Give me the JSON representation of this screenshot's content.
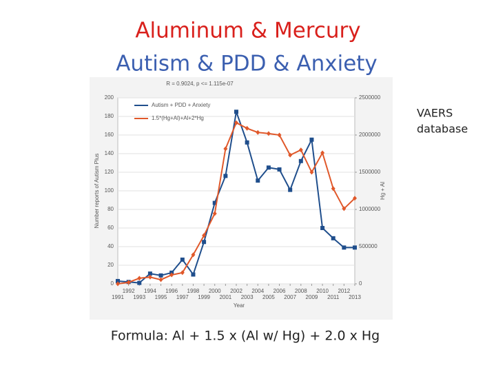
{
  "slide_title": [
    "Aluminum & Mercury",
    "Autism & PDD & Anxiety"
  ],
  "side_note": [
    "VAERS",
    "database"
  ],
  "formula": "Formula:  Al + 1.5 x (Al  w/ Hg) + 2.0 x Hg",
  "chart_data": {
    "type": "line",
    "title": "R = 0.9024, p <= 1.115e-07",
    "x_label": "Year",
    "y_label": "Number reports of Autism Plus",
    "y2_label": "Hg + Al",
    "x": [
      1991,
      1992,
      1993,
      1994,
      1995,
      1996,
      1997,
      1998,
      1999,
      2000,
      2001,
      2002,
      2003,
      2004,
      2005,
      2006,
      2007,
      2008,
      2009,
      2010,
      2011,
      2012,
      2013
    ],
    "xlim": [
      1991,
      2013
    ],
    "xticks": [
      1991,
      1992,
      1993,
      1994,
      1995,
      1996,
      1997,
      1998,
      1999,
      2000,
      2001,
      2002,
      2003,
      2004,
      2005,
      2006,
      2007,
      2008,
      2009,
      2010,
      2011,
      2012,
      2013
    ],
    "ylim": [
      0,
      200
    ],
    "yticks": [
      0,
      20,
      40,
      60,
      80,
      100,
      120,
      140,
      160,
      180,
      200
    ],
    "y2lim": [
      0,
      2500000
    ],
    "y2ticks": [
      0,
      500000,
      1000000,
      1500000,
      2000000,
      2500000
    ],
    "series": [
      {
        "name": "Autism + PDD + Anxiety",
        "color": "#1f4e8c",
        "marker": "square",
        "values": [
          3,
          2,
          1,
          11,
          9,
          12,
          26,
          10,
          45,
          87,
          116,
          185,
          152,
          111,
          125,
          123,
          101,
          132,
          155,
          60,
          49,
          39,
          39
        ]
      },
      {
        "name": "1.5*(Hg+Al)+Al+2*Hg",
        "color": "#e0582a",
        "marker": "diamond",
        "axis": "y2",
        "values": [
          0,
          20000,
          75000,
          90000,
          55000,
          120000,
          150000,
          390000,
          650000,
          945000,
          1815000,
          2165000,
          2090000,
          2035000,
          2020000,
          2000000,
          1730000,
          1800000,
          1500000,
          1760000,
          1280000,
          1010000,
          1150000
        ]
      }
    ]
  }
}
